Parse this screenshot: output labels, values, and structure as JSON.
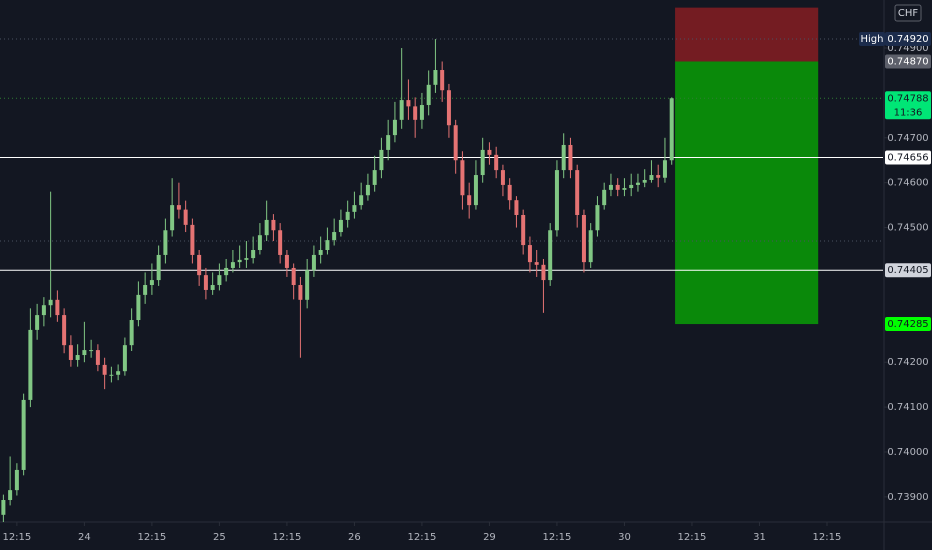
{
  "chart_data": {
    "type": "candlestick",
    "currency": "CHF",
    "up_color": "#81c784",
    "down_color": "#e57373",
    "xlim": [
      -0.5,
      130.3
    ],
    "ylim": [
      0.73844,
      0.75007
    ],
    "yticks": [
      {
        "value": 0.739,
        "label": "0.73900"
      },
      {
        "value": 0.74,
        "label": "0.74000"
      },
      {
        "value": 0.741,
        "label": "0.74100"
      },
      {
        "value": 0.742,
        "label": "0.74200"
      },
      {
        "value": 0.745,
        "label": "0.74500"
      },
      {
        "value": 0.746,
        "label": "0.74600"
      },
      {
        "value": 0.747,
        "label": "0.74700"
      },
      {
        "value": 0.749,
        "label": "0.74900"
      }
    ],
    "xticks": [
      {
        "value": 2,
        "label": "12:15"
      },
      {
        "value": 12,
        "label": "24"
      },
      {
        "value": 22,
        "label": "12:15"
      },
      {
        "value": 32,
        "label": "25"
      },
      {
        "value": 42,
        "label": "12:15"
      },
      {
        "value": 52,
        "label": "26"
      },
      {
        "value": 62,
        "label": "12:15"
      },
      {
        "value": 72,
        "label": "29"
      },
      {
        "value": 82,
        "label": "12:15"
      },
      {
        "value": 92,
        "label": "30"
      },
      {
        "value": 102,
        "label": "12:15"
      },
      {
        "value": 112,
        "label": "31"
      },
      {
        "value": 122,
        "label": "12:15"
      }
    ],
    "candles": [
      [
        0.7386,
        0.73905,
        0.73844,
        0.73893
      ],
      [
        0.73893,
        0.7399,
        0.73881,
        0.73915
      ],
      [
        0.73915,
        0.73975,
        0.73903,
        0.7396
      ],
      [
        0.7396,
        0.7413,
        0.73948,
        0.74116
      ],
      [
        0.74116,
        0.7432,
        0.741,
        0.74272
      ],
      [
        0.74272,
        0.7433,
        0.7425,
        0.74305
      ],
      [
        0.74305,
        0.74345,
        0.7428,
        0.74327
      ],
      [
        0.74327,
        0.7458,
        0.743,
        0.74339
      ],
      [
        0.74339,
        0.7436,
        0.7429,
        0.74305
      ],
      [
        0.74305,
        0.7432,
        0.7422,
        0.74238
      ],
      [
        0.74238,
        0.7426,
        0.7419,
        0.74205
      ],
      [
        0.74205,
        0.7424,
        0.7419,
        0.74216
      ],
      [
        0.74216,
        0.7429,
        0.742,
        0.74227
      ],
      [
        0.74227,
        0.7425,
        0.7421,
        0.74227
      ],
      [
        0.74227,
        0.7424,
        0.7418,
        0.74194
      ],
      [
        0.74194,
        0.7421,
        0.7414,
        0.74172
      ],
      [
        0.74172,
        0.7419,
        0.74155,
        0.74172
      ],
      [
        0.74172,
        0.74195,
        0.7416,
        0.7418
      ],
      [
        0.7418,
        0.74255,
        0.7417,
        0.74238
      ],
      [
        0.74238,
        0.7432,
        0.74225,
        0.74294
      ],
      [
        0.74294,
        0.7438,
        0.7428,
        0.7435
      ],
      [
        0.7435,
        0.744,
        0.7433,
        0.74372
      ],
      [
        0.74372,
        0.7442,
        0.7435,
        0.74383
      ],
      [
        0.74383,
        0.7446,
        0.7437,
        0.74439
      ],
      [
        0.74439,
        0.7452,
        0.7442,
        0.74494
      ],
      [
        0.74494,
        0.7461,
        0.7448,
        0.7455
      ],
      [
        0.7455,
        0.746,
        0.7452,
        0.7454
      ],
      [
        0.7454,
        0.7456,
        0.7449,
        0.74506
      ],
      [
        0.74506,
        0.7452,
        0.7442,
        0.74439
      ],
      [
        0.74439,
        0.7445,
        0.7437,
        0.74394
      ],
      [
        0.74394,
        0.7441,
        0.7434,
        0.74361
      ],
      [
        0.74361,
        0.744,
        0.7435,
        0.74372
      ],
      [
        0.74372,
        0.7442,
        0.7436,
        0.74394
      ],
      [
        0.74394,
        0.7443,
        0.7438,
        0.7441
      ],
      [
        0.7441,
        0.7445,
        0.744,
        0.74423
      ],
      [
        0.74423,
        0.7446,
        0.7441,
        0.74428
      ],
      [
        0.74428,
        0.7447,
        0.7441,
        0.74432
      ],
      [
        0.74432,
        0.7448,
        0.7442,
        0.7445
      ],
      [
        0.7445,
        0.7451,
        0.7444,
        0.74483
      ],
      [
        0.74483,
        0.7456,
        0.7447,
        0.74517
      ],
      [
        0.74517,
        0.7453,
        0.7447,
        0.74494
      ],
      [
        0.74494,
        0.7451,
        0.7442,
        0.74439
      ],
      [
        0.74439,
        0.7445,
        0.7439,
        0.7441
      ],
      [
        0.7441,
        0.7442,
        0.7434,
        0.74372
      ],
      [
        0.74372,
        0.7439,
        0.7421,
        0.74339
      ],
      [
        0.74339,
        0.7443,
        0.7432,
        0.74405
      ],
      [
        0.74405,
        0.7446,
        0.7439,
        0.74439
      ],
      [
        0.74439,
        0.7448,
        0.7442,
        0.7445
      ],
      [
        0.7445,
        0.745,
        0.7444,
        0.74472
      ],
      [
        0.74472,
        0.7452,
        0.7446,
        0.7449
      ],
      [
        0.7449,
        0.7454,
        0.7448,
        0.74517
      ],
      [
        0.74517,
        0.7456,
        0.745,
        0.74535
      ],
      [
        0.74535,
        0.7458,
        0.7452,
        0.7455
      ],
      [
        0.7455,
        0.746,
        0.7454,
        0.74572
      ],
      [
        0.74572,
        0.7462,
        0.7456,
        0.74595
      ],
      [
        0.74595,
        0.7466,
        0.7458,
        0.74628
      ],
      [
        0.74628,
        0.747,
        0.7461,
        0.74673
      ],
      [
        0.74673,
        0.7474,
        0.7465,
        0.74706
      ],
      [
        0.74706,
        0.7478,
        0.7469,
        0.7474
      ],
      [
        0.7474,
        0.749,
        0.7472,
        0.74784
      ],
      [
        0.74784,
        0.7483,
        0.7474,
        0.7477
      ],
      [
        0.7477,
        0.7479,
        0.747,
        0.7474
      ],
      [
        0.7474,
        0.748,
        0.7472,
        0.74773
      ],
      [
        0.74773,
        0.7485,
        0.7475,
        0.74818
      ],
      [
        0.74818,
        0.7492,
        0.748,
        0.74851
      ],
      [
        0.74851,
        0.7487,
        0.7478,
        0.74806
      ],
      [
        0.74806,
        0.7482,
        0.747,
        0.74728
      ],
      [
        0.74728,
        0.7474,
        0.7462,
        0.7465
      ],
      [
        0.7465,
        0.7467,
        0.7454,
        0.74572
      ],
      [
        0.74572,
        0.746,
        0.7452,
        0.7455
      ],
      [
        0.7455,
        0.7465,
        0.7454,
        0.74617
      ],
      [
        0.74617,
        0.747,
        0.746,
        0.74673
      ],
      [
        0.74673,
        0.7469,
        0.7464,
        0.74662
      ],
      [
        0.74662,
        0.7468,
        0.7461,
        0.74628
      ],
      [
        0.74628,
        0.7464,
        0.7457,
        0.74595
      ],
      [
        0.74595,
        0.7461,
        0.7454,
        0.74561
      ],
      [
        0.74561,
        0.7457,
        0.745,
        0.74528
      ],
      [
        0.74528,
        0.7454,
        0.7444,
        0.74461
      ],
      [
        0.74461,
        0.7448,
        0.744,
        0.74423
      ],
      [
        0.74423,
        0.7445,
        0.7439,
        0.74417
      ],
      [
        0.74417,
        0.7443,
        0.7431,
        0.74383
      ],
      [
        0.74383,
        0.7451,
        0.7437,
        0.74494
      ],
      [
        0.74494,
        0.7465,
        0.7448,
        0.74628
      ],
      [
        0.74628,
        0.7471,
        0.7461,
        0.74684
      ],
      [
        0.74684,
        0.747,
        0.7461,
        0.74628
      ],
      [
        0.74628,
        0.7464,
        0.745,
        0.74528
      ],
      [
        0.74528,
        0.7454,
        0.744,
        0.74423
      ],
      [
        0.74423,
        0.7451,
        0.7441,
        0.74494
      ],
      [
        0.74494,
        0.7457,
        0.7448,
        0.7455
      ],
      [
        0.7455,
        0.746,
        0.7454,
        0.74584
      ],
      [
        0.74584,
        0.7462,
        0.7457,
        0.74595
      ],
      [
        0.74595,
        0.7461,
        0.7457,
        0.74584
      ],
      [
        0.74584,
        0.7461,
        0.7457,
        0.74588
      ],
      [
        0.74588,
        0.7462,
        0.7457,
        0.74595
      ],
      [
        0.74595,
        0.7462,
        0.7458,
        0.746
      ],
      [
        0.746,
        0.7463,
        0.7459,
        0.74606
      ],
      [
        0.74606,
        0.7465,
        0.746,
        0.74617
      ],
      [
        0.74617,
        0.7464,
        0.7459,
        0.74611
      ],
      [
        0.74611,
        0.747,
        0.746,
        0.7465
      ],
      [
        0.7465,
        0.7479,
        0.7464,
        0.74788
      ]
    ],
    "position": {
      "stop": 0.7499,
      "entry": 0.7487,
      "target": 0.74285,
      "x": [
        99.5,
        120.7
      ],
      "stop_color": "#7f1d22",
      "target_color": "#0a8f0a"
    },
    "lines": [
      {
        "value": 0.7492,
        "color": "#4a5060",
        "style": "dotted"
      },
      {
        "value": 0.74788,
        "color": "#2e7d32",
        "style": "dotted"
      },
      {
        "value": 0.7447,
        "color": "#4a5060",
        "style": "dotted"
      },
      {
        "value": 0.74656,
        "color": "#ffffff",
        "style": "solid"
      },
      {
        "value": 0.74405,
        "color": "#ffffff",
        "style": "solid"
      }
    ],
    "price_tags": [
      {
        "value": 0.7492,
        "label": "0.74920",
        "tag": "High",
        "color": "#1c2c4c"
      },
      {
        "value": 0.7487,
        "label": "0.74870",
        "color": "#5d606b"
      },
      {
        "value": 0.74788,
        "label": "0.74788",
        "sublabel": "11:36",
        "color": "#00e676"
      },
      {
        "value": 0.74656,
        "label": "0.74656",
        "color": "#ffffff"
      },
      {
        "value": 0.74405,
        "label": "0.74405",
        "color": "#d1d4dc"
      },
      {
        "value": 0.74285,
        "label": "0.74285",
        "color": "#00ff00"
      }
    ]
  }
}
